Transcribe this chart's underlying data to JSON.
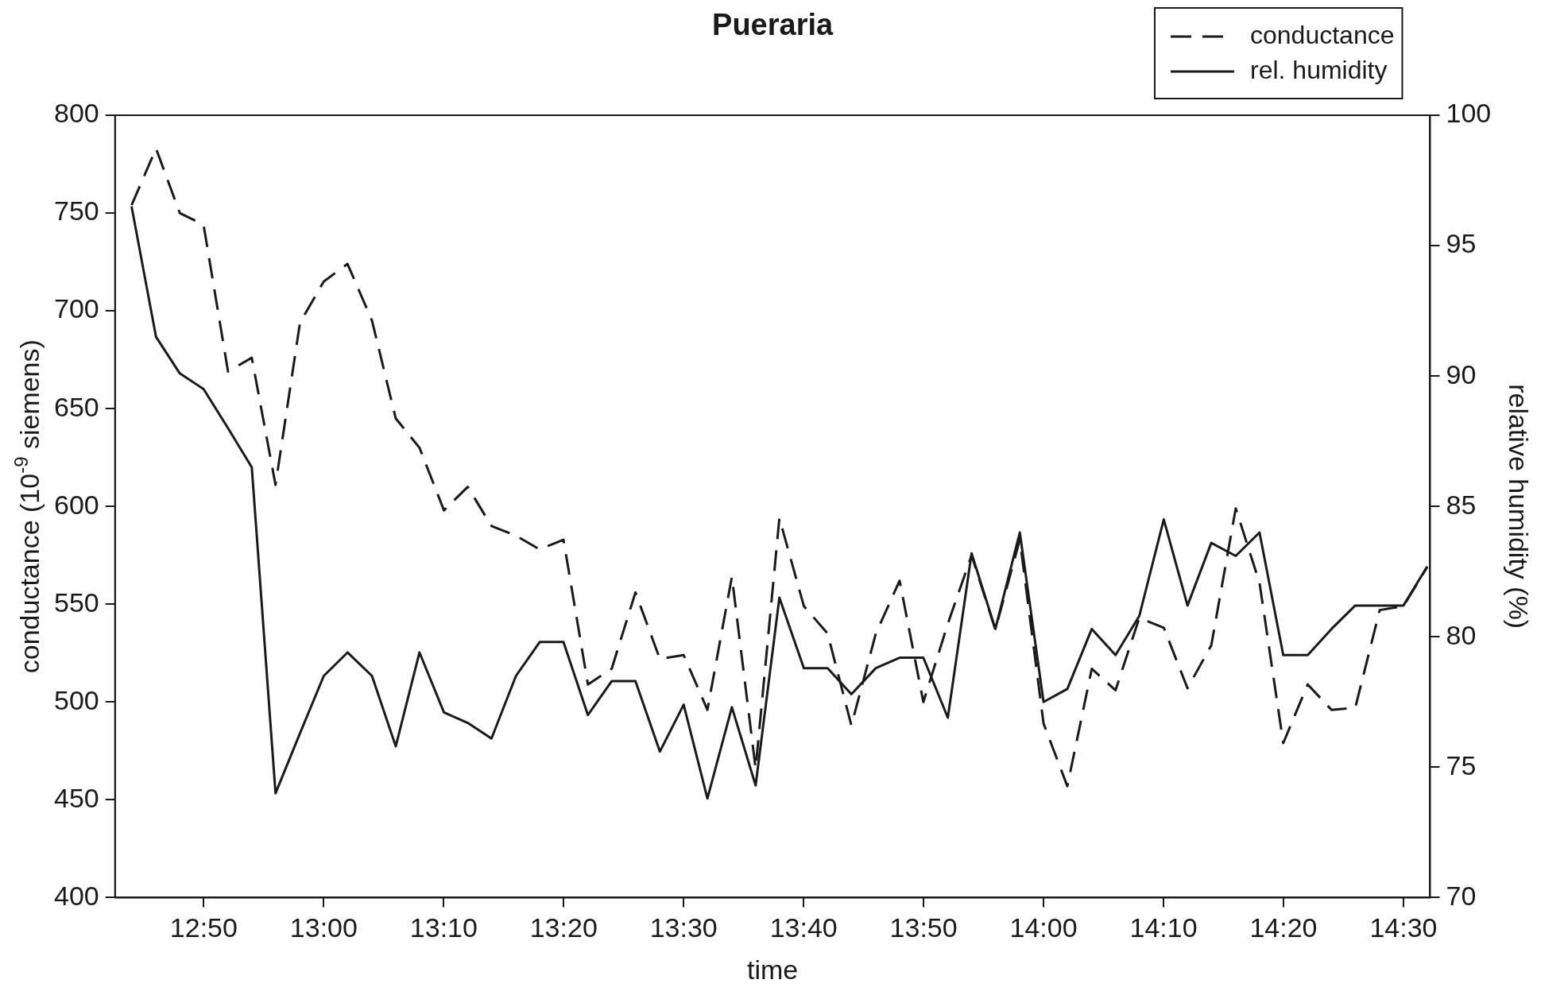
{
  "chart_data": {
    "type": "line",
    "title": "Pueraria",
    "xlabel": "time",
    "ylabel": "conductance (10$^{-9}$ siemens)",
    "y2label": "relative humidity (%)",
    "x": [
      12.733,
      12.767,
      12.8,
      12.833,
      12.867,
      12.9,
      12.933,
      12.967,
      13.0,
      13.033,
      13.067,
      13.1,
      13.133,
      13.167,
      13.2,
      13.233,
      13.267,
      13.3,
      13.333,
      13.367,
      13.4,
      13.433,
      13.467,
      13.5,
      13.533,
      13.567,
      13.6,
      13.633,
      13.667,
      13.7,
      13.733,
      13.767,
      13.8,
      13.833,
      13.867,
      13.9,
      13.933,
      13.967,
      14.0,
      14.033,
      14.067,
      14.1,
      14.133,
      14.167,
      14.2,
      14.233,
      14.267,
      14.3,
      14.333,
      14.367,
      14.4,
      14.433,
      14.467,
      14.5,
      14.533
    ],
    "series": [
      {
        "name": "conductance",
        "color": "#1a1a1a",
        "line_style": "dashed",
        "values": [
          754,
          783,
          750,
          744,
          669,
          676,
          611,
          694,
          715,
          724,
          695,
          645,
          630,
          598,
          610,
          590,
          585,
          578,
          583,
          509,
          517,
          556,
          522,
          524,
          496,
          564,
          466,
          594,
          549,
          535,
          488,
          535,
          562,
          500,
          540,
          575,
          537,
          583,
          489,
          457,
          517,
          506,
          543,
          538,
          507,
          529,
          599,
          561,
          479,
          509,
          496,
          497,
          547,
          549,
          569
        ]
      },
      {
        "name": "rel. humidity",
        "color": "#1a1a1a",
        "line_style": "solid",
        "axis": "y2",
        "values": [
          96.5,
          91.5,
          90.1,
          89.5,
          88.0,
          86.5,
          74.0,
          76.3,
          78.5,
          79.4,
          78.5,
          75.8,
          79.4,
          77.1,
          76.7,
          76.1,
          78.5,
          79.8,
          79.8,
          77.0,
          78.3,
          78.3,
          75.6,
          77.4,
          73.8,
          77.3,
          74.3,
          81.5,
          78.8,
          78.8,
          77.8,
          78.8,
          79.2,
          79.2,
          76.9,
          83.2,
          80.3,
          84.0,
          77.5,
          78.0,
          80.3,
          79.3,
          80.8,
          84.5,
          81.2,
          83.6,
          83.1,
          84.0,
          79.3,
          79.3,
          80.3,
          81.2,
          81.2,
          81.2,
          82.7
        ]
      }
    ],
    "xlim": [
      12.71,
      14.537
    ],
    "xticks": [
      {
        "value": 12.8333,
        "label": "12:50"
      },
      {
        "value": 13.0,
        "label": "13:00"
      },
      {
        "value": 13.1667,
        "label": "13:10"
      },
      {
        "value": 13.3333,
        "label": "13:20"
      },
      {
        "value": 13.5,
        "label": "13:30"
      },
      {
        "value": 13.6667,
        "label": "13:40"
      },
      {
        "value": 13.8333,
        "label": "13:50"
      },
      {
        "value": 14.0,
        "label": "14:00"
      },
      {
        "value": 14.1667,
        "label": "14:10"
      },
      {
        "value": 14.3333,
        "label": "14:20"
      },
      {
        "value": 14.5,
        "label": "14:30"
      }
    ],
    "ylim": [
      400,
      800
    ],
    "yticks": [
      400,
      450,
      500,
      550,
      600,
      650,
      700,
      750,
      800
    ],
    "y2lim": [
      70,
      100
    ],
    "y2ticks": [
      70,
      75,
      80,
      85,
      90,
      95,
      100
    ],
    "legend": "top right",
    "marker": "none",
    "grid": false
  }
}
